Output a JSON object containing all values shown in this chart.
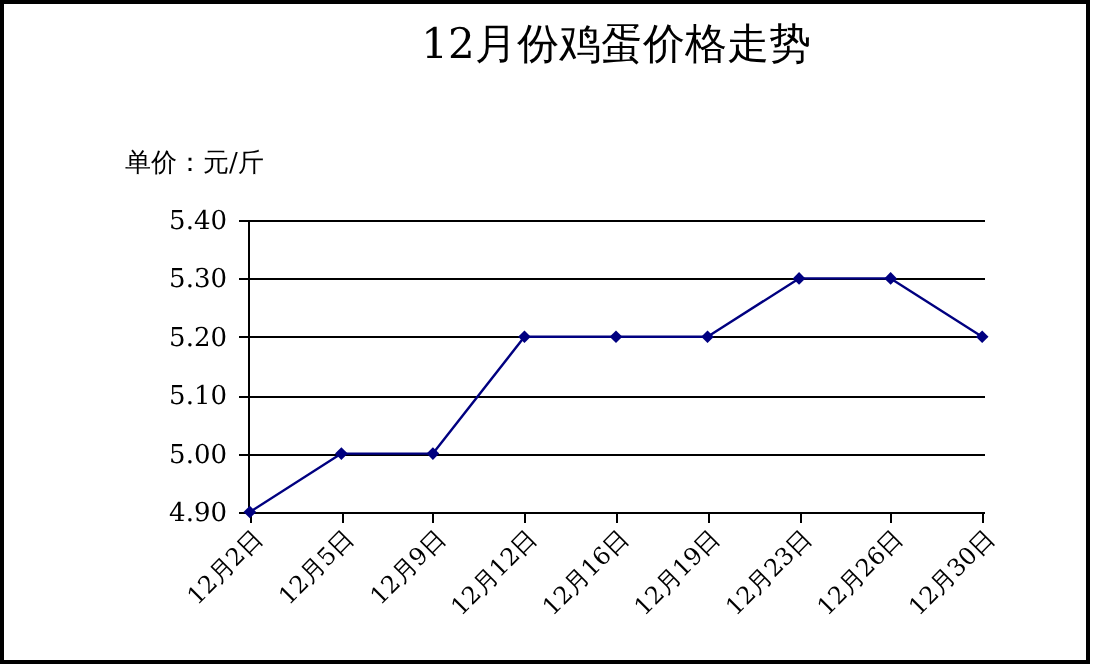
{
  "chart_data": {
    "type": "line",
    "title": "12月份鸡蛋价格走势",
    "ylabel": "单价：元/斤",
    "categories": [
      "12月2日",
      "12月5日",
      "12月9日",
      "12月12日",
      "12月16日",
      "12月19日",
      "12月23日",
      "12月26日",
      "12月30日"
    ],
    "series": [
      {
        "color": "#000080",
        "values": [
          4.9,
          5.0,
          5.0,
          5.2,
          5.2,
          5.2,
          5.3,
          5.3,
          5.2
        ]
      }
    ],
    "ylim": [
      4.9,
      5.4
    ],
    "yticks": [
      {
        "value": 4.9,
        "label": "4.90"
      },
      {
        "value": 5.0,
        "label": "5.00"
      },
      {
        "value": 5.1,
        "label": "5.10"
      },
      {
        "value": 5.2,
        "label": "5.20"
      },
      {
        "value": 5.3,
        "label": "5.30"
      },
      {
        "value": 5.4,
        "label": "5.40"
      }
    ],
    "grid": "y",
    "marker": "diamond",
    "line_style": "solid",
    "legend": false
  }
}
